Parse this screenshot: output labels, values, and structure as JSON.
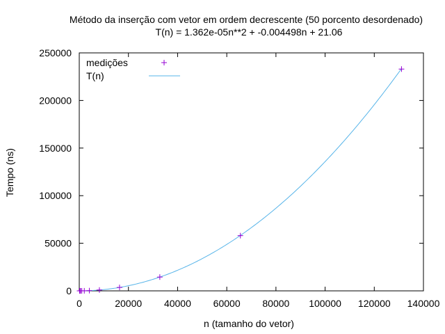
{
  "chart_data": {
    "type": "scatter",
    "title": "Método da inserção com vetor em ordem decrescente (50 porcento desordenado)",
    "subtitle": "T(n) = 1.362e-05n**2 + -0.004498n + 21.06",
    "xlabel": "n (tamanho do vetor)",
    "ylabel": "Tempo (ns)",
    "xlim": [
      0,
      140000
    ],
    "ylim": [
      0,
      250000
    ],
    "x_ticks": [
      "0",
      "20000",
      "40000",
      "60000",
      "80000",
      "100000",
      "120000",
      "140000"
    ],
    "y_ticks": [
      "0",
      "50000",
      "100000",
      "150000",
      "200000",
      "250000"
    ],
    "grid": false,
    "legend_position": "top-left",
    "series": [
      {
        "name": "medições",
        "kind": "points",
        "marker": "plus",
        "color": "#9400d3",
        "points": [
          {
            "x": 128,
            "y": 20
          },
          {
            "x": 256,
            "y": 21
          },
          {
            "x": 512,
            "y": 22
          },
          {
            "x": 1024,
            "y": 31
          },
          {
            "x": 2048,
            "y": 68
          },
          {
            "x": 4096,
            "y": 235
          },
          {
            "x": 8192,
            "y": 900
          },
          {
            "x": 16384,
            "y": 3600
          },
          {
            "x": 32768,
            "y": 14500
          },
          {
            "x": 65536,
            "y": 58000
          },
          {
            "x": 131072,
            "y": 233000
          }
        ]
      },
      {
        "name": "T(n)",
        "kind": "function",
        "color": "#56b4e9",
        "coefficients": {
          "a": 1.362e-05,
          "b": -0.004498,
          "c": 21.06
        },
        "x_range": [
          0,
          131072
        ]
      }
    ]
  }
}
